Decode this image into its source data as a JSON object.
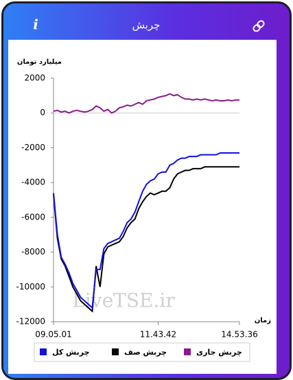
{
  "header": {
    "title": "چربش",
    "info": "i"
  },
  "watermark": "LiveTSE.ir",
  "chart_data": {
    "type": "line",
    "y_label": "میلیارد تومان",
    "x_label": "زمان",
    "categories": [
      "09.05.01",
      null,
      null,
      null,
      null,
      null,
      null,
      null,
      null,
      null,
      null,
      null,
      null,
      null,
      null,
      null,
      null,
      null,
      null,
      null,
      null,
      null,
      null,
      null,
      null,
      null,
      null,
      "11.43.42",
      null,
      null,
      null,
      null,
      null,
      null,
      null,
      null,
      null,
      null,
      null,
      null,
      null,
      null,
      null,
      null,
      null,
      null,
      null,
      null,
      "14.53.36"
    ],
    "series": [
      {
        "name": "چربش کل",
        "color": "#1010e0",
        "values": [
          -4600,
          -7000,
          -8300,
          -8700,
          -9200,
          -9800,
          -10200,
          -10600,
          -10800,
          -11000,
          -11200,
          -9000,
          -9000,
          -7800,
          -7500,
          -7400,
          -7300,
          -7200,
          -6800,
          -6300,
          -6100,
          -5700,
          -5100,
          -4500,
          -4100,
          -3900,
          -3800,
          -3500,
          -3400,
          -3400,
          -3000,
          -2900,
          -2700,
          -2600,
          -2600,
          -2500,
          -2500,
          -2500,
          -2400,
          -2400,
          -2400,
          -2400,
          -2400,
          -2300,
          -2300,
          -2300,
          -2300,
          -2300,
          -2300
        ]
      },
      {
        "name": "چربش صف",
        "color": "#000000",
        "values": [
          -4700,
          -7200,
          -8400,
          -8800,
          -9400,
          -10000,
          -10400,
          -10800,
          -11000,
          -11200,
          -11400,
          -8800,
          -10000,
          -8100,
          -7700,
          -7600,
          -7500,
          -7400,
          -7100,
          -6600,
          -6300,
          -6100,
          -5500,
          -5100,
          -4800,
          -4600,
          -4700,
          -4600,
          -4500,
          -4500,
          -4300,
          -3800,
          -3500,
          -3400,
          -3300,
          -3300,
          -3200,
          -3200,
          -3200,
          -3100,
          -3100,
          -3100,
          -3100,
          -3100,
          -3100,
          -3100,
          -3100,
          -3100,
          -3100
        ]
      },
      {
        "name": "چربش جاری",
        "color": "#8a1a8a",
        "values": [
          100,
          150,
          50,
          100,
          0,
          100,
          150,
          100,
          50,
          100,
          200,
          400,
          300,
          100,
          200,
          0,
          100,
          300,
          350,
          450,
          400,
          500,
          600,
          500,
          700,
          750,
          800,
          900,
          950,
          1000,
          1100,
          1000,
          1050,
          900,
          800,
          800,
          750,
          800,
          750,
          800,
          750,
          700,
          750,
          700,
          700,
          750,
          700,
          750,
          750
        ]
      }
    ],
    "ylim": [
      -12000,
      2000
    ],
    "yticks": [
      2000,
      0,
      -2000,
      -4000,
      -6000,
      -8000,
      -10000,
      -12000
    ],
    "zero_line": true,
    "grid": false
  }
}
